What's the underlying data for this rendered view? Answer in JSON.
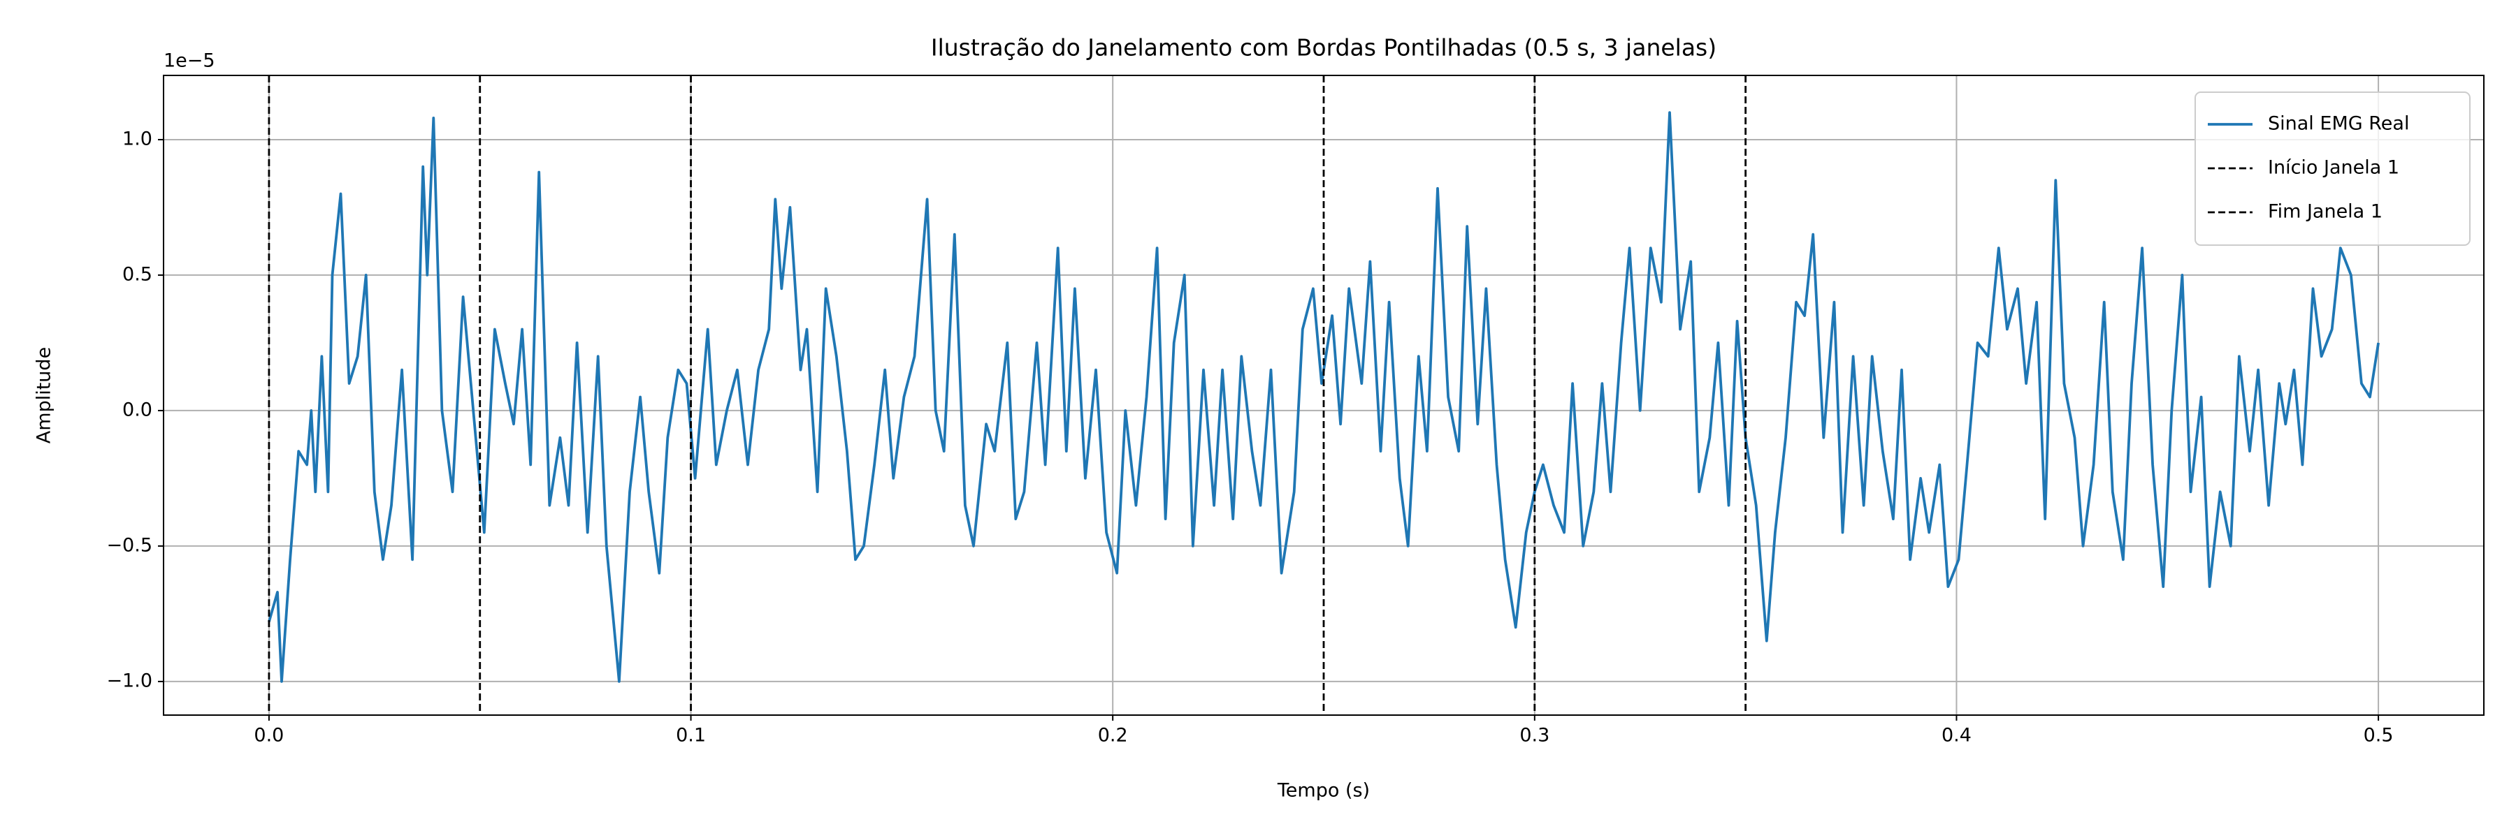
{
  "chart_data": {
    "type": "line",
    "title": "Ilustração do Janelamento com Bordas Pontilhadas (0.5 s, 3 janelas)",
    "xlabel": "Tempo (s)",
    "ylabel": "Amplitude",
    "y_offset_text": "1e−5",
    "x": [
      0,
      0.002,
      0.003,
      0.005,
      0.007,
      0.009,
      0.01,
      0.011,
      0.0125,
      0.014,
      0.015,
      0.017,
      0.019,
      0.021,
      0.023,
      0.025,
      0.027,
      0.029,
      0.0315,
      0.034,
      0.0365,
      0.0375,
      0.039,
      0.041,
      0.0435,
      0.046,
      0.049,
      0.051,
      0.0535,
      0.056,
      0.058,
      0.06,
      0.062,
      0.064,
      0.0665,
      0.069,
      0.071,
      0.073,
      0.0755,
      0.078,
      0.08,
      0.083,
      0.0855,
      0.088,
      0.09,
      0.0925,
      0.0945,
      0.097,
      0.099,
      0.101,
      0.104,
      0.106,
      0.1085,
      0.111,
      0.1135,
      0.116,
      0.1185,
      0.12,
      0.1215,
      0.1235,
      0.126,
      0.1275,
      0.13,
      0.132,
      0.1345,
      0.137,
      0.139,
      0.141,
      0.1435,
      0.146,
      0.148,
      0.1505,
      0.153,
      0.156,
      0.158,
      0.16,
      0.1625,
      0.165,
      0.167,
      0.17,
      0.172,
      0.175,
      0.177,
      0.179,
      0.182,
      0.184,
      0.187,
      0.189,
      0.191,
      0.1935,
      0.196,
      0.1985,
      0.201,
      0.203,
      0.2055,
      0.208,
      0.2105,
      0.2125,
      0.2145,
      0.217,
      0.219,
      0.2215,
      0.224,
      0.226,
      0.2285,
      0.2305,
      0.233,
      0.235,
      0.2375,
      0.24,
      0.243,
      0.245,
      0.2475,
      0.2495,
      0.252,
      0.254,
      0.256,
      0.259,
      0.261,
      0.2635,
      0.2655,
      0.268,
      0.27,
      0.2725,
      0.2745,
      0.277,
      0.2795,
      0.282,
      0.284,
      0.2865,
      0.2885,
      0.291,
      0.293,
      0.2955,
      0.298,
      0.3,
      0.302,
      0.3045,
      0.307,
      0.309,
      0.3115,
      0.314,
      0.316,
      0.318,
      0.3205,
      0.3225,
      0.325,
      0.3275,
      0.33,
      0.332,
      0.3345,
      0.337,
      0.339,
      0.3415,
      0.3435,
      0.346,
      0.348,
      0.35,
      0.3525,
      0.355,
      0.357,
      0.3595,
      0.362,
      0.364,
      0.366,
      0.3685,
      0.371,
      0.373,
      0.3755,
      0.378,
      0.38,
      0.3825,
      0.385,
      0.387,
      0.389,
      0.3915,
      0.3935,
      0.396,
      0.398,
      0.4005,
      0.4025,
      0.405,
      0.4075,
      0.41,
      0.412,
      0.4145,
      0.4165,
      0.419,
      0.421,
      0.4235,
      0.4255,
      0.428,
      0.43,
      0.4325,
      0.435,
      0.437,
      0.4395,
      0.4415,
      0.444,
      0.4465,
      0.449,
      0.451,
      0.4535,
      0.4555,
      0.458,
      0.46,
      0.4625,
      0.465,
      0.467,
      0.4695,
      0.4715,
      0.474,
      0.4765,
      0.478,
      0.48,
      0.482,
      0.4845,
      0.4865,
      0.489,
      0.491,
      0.4935,
      0.496,
      0.498,
      0.5
    ],
    "series": [
      {
        "name": "Sinal EMG Real",
        "color": "#1f77b4",
        "values": [
          -0.78,
          -0.67,
          -1.0,
          -0.55,
          -0.15,
          -0.2,
          0.0,
          -0.3,
          0.2,
          -0.3,
          0.5,
          0.8,
          0.1,
          0.2,
          0.5,
          -0.3,
          -0.55,
          -0.35,
          0.15,
          -0.55,
          0.9,
          0.5,
          1.08,
          0.0,
          -0.3,
          0.42,
          -0.1,
          -0.45,
          0.3,
          0.1,
          -0.05,
          0.3,
          -0.2,
          0.88,
          -0.35,
          -0.1,
          -0.35,
          0.25,
          -0.45,
          0.2,
          -0.5,
          -1.0,
          -0.3,
          0.05,
          -0.3,
          -0.6,
          -0.1,
          0.15,
          0.1,
          -0.25,
          0.3,
          -0.2,
          0.0,
          0.15,
          -0.2,
          0.15,
          0.3,
          0.78,
          0.45,
          0.75,
          0.15,
          0.3,
          -0.3,
          0.45,
          0.2,
          -0.15,
          -0.55,
          -0.5,
          -0.2,
          0.15,
          -0.25,
          0.05,
          0.2,
          0.78,
          0.0,
          -0.15,
          0.65,
          -0.35,
          -0.5,
          -0.05,
          -0.15,
          0.25,
          -0.4,
          -0.3,
          0.25,
          -0.2,
          0.6,
          -0.15,
          0.45,
          -0.25,
          0.15,
          -0.45,
          -0.6,
          0.0,
          -0.35,
          0.05,
          0.6,
          -0.4,
          0.25,
          0.5,
          -0.5,
          0.15,
          -0.35,
          0.15,
          -0.4,
          0.2,
          -0.15,
          -0.35,
          0.15,
          -0.6,
          -0.3,
          0.3,
          0.45,
          0.1,
          0.35,
          -0.05,
          0.45,
          0.1,
          0.55,
          -0.15,
          0.4,
          -0.25,
          -0.5,
          0.2,
          -0.15,
          0.82,
          0.05,
          -0.15,
          0.68,
          -0.05,
          0.45,
          -0.2,
          -0.55,
          -0.8,
          -0.45,
          -0.3,
          -0.2,
          -0.35,
          -0.45,
          0.1,
          -0.5,
          -0.3,
          0.1,
          -0.3,
          0.25,
          0.6,
          0.0,
          0.6,
          0.4,
          1.1,
          0.3,
          0.55,
          -0.3,
          -0.1,
          0.25,
          -0.35,
          0.33,
          -0.1,
          -0.35,
          -0.85,
          -0.45,
          -0.1,
          0.4,
          0.35,
          0.65,
          -0.1,
          0.4,
          -0.45,
          0.2,
          -0.35,
          0.2,
          -0.15,
          -0.4,
          0.15,
          -0.55,
          -0.25,
          -0.45,
          -0.2,
          -0.65,
          -0.55,
          -0.2,
          0.25,
          0.2,
          0.6,
          0.3,
          0.45,
          0.1,
          0.4,
          -0.4,
          0.85,
          0.1,
          -0.1,
          -0.5,
          -0.2,
          0.4,
          -0.3,
          -0.55,
          0.1,
          0.6,
          -0.2,
          -0.65,
          0.0,
          0.5,
          -0.3,
          0.05,
          -0.65,
          -0.3,
          -0.5,
          0.2,
          -0.15,
          0.15,
          -0.35,
          0.1,
          -0.05,
          0.15,
          -0.2,
          0.45,
          0.2,
          0.3,
          0.6,
          0.5,
          0.1,
          0.05,
          0.25
        ]
      }
    ],
    "vlines": [
      {
        "name": "Início Janela 1",
        "x": 0
      },
      {
        "name": "Fim Janela 1",
        "x": 0.05
      },
      {
        "x": 0.1
      },
      {
        "x": 0.25
      },
      {
        "x": 0.3
      },
      {
        "x": 0.35
      }
    ],
    "vline_color": "#000000",
    "xlim": [
      -0.025,
      0.525
    ],
    "ylim": [
      -1.124,
      1.237
    ],
    "xticks": [
      {
        "value": 0,
        "label": "0.0"
      },
      0.1,
      0.2,
      0.3,
      0.4,
      0.5
    ],
    "yticks": [
      {
        "value": -1,
        "label": "−1.0"
      },
      {
        "value": -0.5,
        "label": "−0.5"
      },
      {
        "value": 0,
        "label": "0.0"
      },
      0.5,
      {
        "value": 1,
        "label": "1.0"
      }
    ],
    "grid": true,
    "legend": "upper right"
  }
}
